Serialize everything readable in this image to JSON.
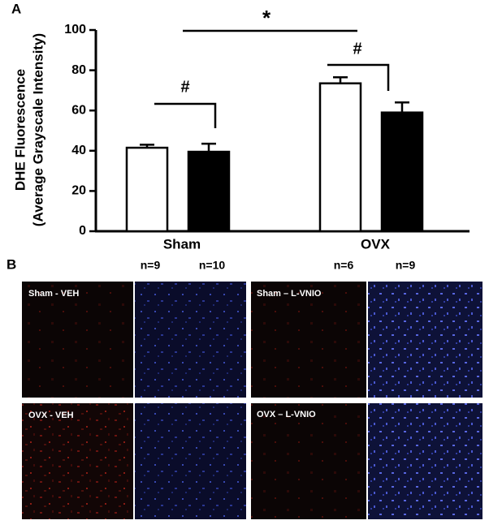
{
  "chart_data": {
    "type": "bar",
    "ylabel": [
      "DHE Fluorescence",
      "(Average Grayscale Intensity)"
    ],
    "categories": [
      "Sham",
      "OVX"
    ],
    "series": [
      {
        "color": "#ffffff",
        "values": [
          41.5,
          73.5
        ],
        "errors": [
          1.5,
          3
        ],
        "n_labels": [
          "n=9",
          "n=6"
        ]
      },
      {
        "color": "#000000",
        "values": [
          39.5,
          59
        ],
        "errors": [
          4,
          5
        ],
        "n_labels": [
          "n=10",
          "n=9"
        ]
      }
    ],
    "ylim": [
      0,
      100
    ],
    "yticks": [
      0,
      20,
      40,
      60,
      80,
      100
    ],
    "annotations": [
      {
        "text": "*"
      },
      {
        "text": "#"
      },
      {
        "text": "#"
      }
    ]
  },
  "panels": {
    "a_label": "A",
    "b_label": "B"
  },
  "images": [
    {
      "label": "Sham - VEH"
    },
    {
      "label": "Sham – L-VNIO"
    },
    {
      "label": "OVX - VEH"
    },
    {
      "label": "OVX – L-VNIO"
    }
  ]
}
